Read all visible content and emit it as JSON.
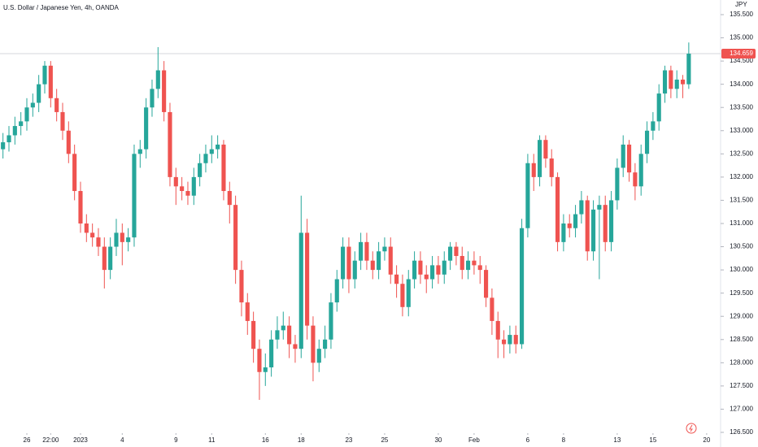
{
  "chart_data": {
    "type": "candlestick",
    "title": "U.S. Dollar / Japanese Yen, 4h, OANDA",
    "y_axis_label": "JPY",
    "up_color": "#26a69a",
    "down_color": "#ef5350",
    "open": [
      132.6,
      132.75,
      132.9,
      133.1,
      133.2,
      133.5,
      133.6,
      134.0,
      134.4,
      133.7,
      133.4,
      133.0,
      132.5,
      131.7,
      131.0,
      130.8,
      130.7,
      130.5,
      130.0,
      130.5,
      130.8,
      130.6,
      130.7,
      132.5,
      132.6,
      133.5,
      133.9,
      134.3,
      133.4,
      132.0,
      131.8,
      131.7,
      131.6,
      132.0,
      132.3,
      132.5,
      132.6,
      132.7,
      131.7,
      131.4,
      130.0,
      129.3,
      128.9,
      128.3,
      127.8,
      127.9,
      128.5,
      128.7,
      128.8,
      128.4,
      128.3,
      130.8,
      128.8,
      128.0,
      128.3,
      128.5,
      129.3,
      129.8,
      130.5,
      129.8,
      130.2,
      130.6,
      130.2,
      130.0,
      130.4,
      130.5,
      129.9,
      129.7,
      129.2,
      129.8,
      130.2,
      129.9,
      129.8,
      130.1,
      129.9,
      130.2,
      130.5,
      130.3,
      130.0,
      130.2,
      130.1,
      130.0,
      129.4,
      128.9,
      128.5,
      128.4,
      128.6,
      128.4,
      130.9,
      132.3,
      132.0,
      132.8,
      132.4,
      132.0,
      130.6,
      131.0,
      130.9,
      131.2,
      131.5,
      130.4,
      131.3,
      131.4,
      130.6,
      131.5,
      132.2,
      132.7,
      132.1,
      131.8,
      132.5,
      133.0,
      133.2,
      133.8,
      134.3,
      133.9,
      134.1,
      134.0
    ],
    "high": [
      132.95,
      133.1,
      133.3,
      133.4,
      133.7,
      133.8,
      134.2,
      134.5,
      134.5,
      133.9,
      133.6,
      133.2,
      132.7,
      131.9,
      131.2,
      131.0,
      130.9,
      130.7,
      130.7,
      131.1,
      131.0,
      130.9,
      132.7,
      132.8,
      133.7,
      134.1,
      134.8,
      134.5,
      133.6,
      132.2,
      132.0,
      131.9,
      132.2,
      132.5,
      132.7,
      132.9,
      132.9,
      132.8,
      131.9,
      131.6,
      130.2,
      129.5,
      129.1,
      128.5,
      128.2,
      128.7,
      129.0,
      129.1,
      129.0,
      128.6,
      131.6,
      131.1,
      129.0,
      128.5,
      128.8,
      129.5,
      130.0,
      130.7,
      130.7,
      130.4,
      130.8,
      130.8,
      130.4,
      130.6,
      130.7,
      130.7,
      130.1,
      129.9,
      130.0,
      130.4,
      130.4,
      130.1,
      130.3,
      130.3,
      130.4,
      130.6,
      130.6,
      130.5,
      130.4,
      130.4,
      130.3,
      130.1,
      129.6,
      129.1,
      128.7,
      128.8,
      128.8,
      131.1,
      132.5,
      132.5,
      132.9,
      132.9,
      132.6,
      132.1,
      131.2,
      131.2,
      131.4,
      131.7,
      131.6,
      131.5,
      131.6,
      131.6,
      131.7,
      132.4,
      132.9,
      132.8,
      132.3,
      132.7,
      133.2,
      133.4,
      134.0,
      134.4,
      134.4,
      134.3,
      134.2,
      134.9
    ],
    "low": [
      132.4,
      132.55,
      132.7,
      132.9,
      133.0,
      133.3,
      133.4,
      133.8,
      133.5,
      133.2,
      132.8,
      132.3,
      131.5,
      130.8,
      130.6,
      130.5,
      130.3,
      129.6,
      129.8,
      130.3,
      130.1,
      130.4,
      130.5,
      132.2,
      132.4,
      133.3,
      133.7,
      133.2,
      131.8,
      131.4,
      131.5,
      131.4,
      131.4,
      131.8,
      132.1,
      132.3,
      132.4,
      131.5,
      131.0,
      129.7,
      129.0,
      128.6,
      128.0,
      127.2,
      127.5,
      127.7,
      128.3,
      128.5,
      128.1,
      128.0,
      128.1,
      128.5,
      127.6,
      127.8,
      128.1,
      128.3,
      129.1,
      129.6,
      129.5,
      129.6,
      130.0,
      130.0,
      129.8,
      129.8,
      130.2,
      129.7,
      129.4,
      129.0,
      129.0,
      129.6,
      129.7,
      129.5,
      129.6,
      129.7,
      129.7,
      130.0,
      130.1,
      129.8,
      129.8,
      129.9,
      129.7,
      129.2,
      128.6,
      128.1,
      128.1,
      128.2,
      128.2,
      128.3,
      130.7,
      131.7,
      131.8,
      132.2,
      131.8,
      130.4,
      130.4,
      130.7,
      130.7,
      131.0,
      130.2,
      130.2,
      129.8,
      130.4,
      130.4,
      131.3,
      132.0,
      131.9,
      131.5,
      131.6,
      132.3,
      132.8,
      133.0,
      133.6,
      133.7,
      133.7,
      133.7,
      133.9
    ],
    "close": [
      132.75,
      132.9,
      133.1,
      133.2,
      133.5,
      133.6,
      134.0,
      134.4,
      133.7,
      133.4,
      133.0,
      132.5,
      131.7,
      131.0,
      130.8,
      130.7,
      130.5,
      130.0,
      130.5,
      130.8,
      130.6,
      130.7,
      132.5,
      132.6,
      133.5,
      133.9,
      134.3,
      133.4,
      132.0,
      131.8,
      131.7,
      131.6,
      132.0,
      132.3,
      132.5,
      132.6,
      132.7,
      131.7,
      131.4,
      130.0,
      129.3,
      128.9,
      128.3,
      127.8,
      127.9,
      128.5,
      128.7,
      128.8,
      128.4,
      128.3,
      130.8,
      128.8,
      128.0,
      128.3,
      128.5,
      129.3,
      129.8,
      130.5,
      129.8,
      130.2,
      130.6,
      130.2,
      130.0,
      130.4,
      130.5,
      129.9,
      129.7,
      129.2,
      129.8,
      130.2,
      129.9,
      129.8,
      130.1,
      129.9,
      130.2,
      130.5,
      130.3,
      130.0,
      130.2,
      130.1,
      130.0,
      129.4,
      128.9,
      128.5,
      128.4,
      128.6,
      128.4,
      130.9,
      132.3,
      132.0,
      132.8,
      132.4,
      132.0,
      130.6,
      131.0,
      130.9,
      131.2,
      131.5,
      130.4,
      131.3,
      131.4,
      130.6,
      131.5,
      132.2,
      132.7,
      132.1,
      131.8,
      132.5,
      133.0,
      133.2,
      133.8,
      134.3,
      133.9,
      134.1,
      134.0,
      134.659
    ],
    "last_price": 134.659,
    "last_price_label": "134.659",
    "xlim": [
      -0.5,
      120.2
    ],
    "xticks": [
      {
        "value": 4,
        "label": "26"
      },
      {
        "value": 8,
        "label": "22:00"
      },
      {
        "value": 13,
        "label": "2023"
      },
      {
        "value": 20,
        "label": "4"
      },
      {
        "value": 29,
        "label": "9"
      },
      {
        "value": 35,
        "label": "11"
      },
      {
        "value": 44,
        "label": "16"
      },
      {
        "value": 50,
        "label": "18"
      },
      {
        "value": 58,
        "label": "23"
      },
      {
        "value": 64,
        "label": "25"
      },
      {
        "value": 73,
        "label": "30"
      },
      {
        "value": 79,
        "label": "Feb"
      },
      {
        "value": 88,
        "label": "6"
      },
      {
        "value": 94,
        "label": "8"
      },
      {
        "value": 103,
        "label": "13"
      },
      {
        "value": 109,
        "label": "15"
      },
      {
        "value": 118,
        "label": "20"
      }
    ],
    "ylim": [
      126.5,
      135.815
    ],
    "yticks": [
      {
        "value": 126.5,
        "label": "126.500"
      },
      {
        "value": 127,
        "label": "127.000"
      },
      {
        "value": 127.5,
        "label": "127.500"
      },
      {
        "value": 128,
        "label": "128.000"
      },
      {
        "value": 128.5,
        "label": "128.500"
      },
      {
        "value": 129,
        "label": "129.000"
      },
      {
        "value": 129.5,
        "label": "129.500"
      },
      {
        "value": 130,
        "label": "130.000"
      },
      {
        "value": 130.5,
        "label": "130.500"
      },
      {
        "value": 131,
        "label": "131.000"
      },
      {
        "value": 131.5,
        "label": "131.500"
      },
      {
        "value": 132,
        "label": "132.000"
      },
      {
        "value": 132.5,
        "label": "132.500"
      },
      {
        "value": 133,
        "label": "133.000"
      },
      {
        "value": 133.5,
        "label": "133.500"
      },
      {
        "value": 134,
        "label": "134.000"
      },
      {
        "value": 134.5,
        "label": "134.500"
      },
      {
        "value": 135,
        "label": "135.000"
      },
      {
        "value": 135.5,
        "label": "135.500"
      }
    ],
    "grid": false
  }
}
